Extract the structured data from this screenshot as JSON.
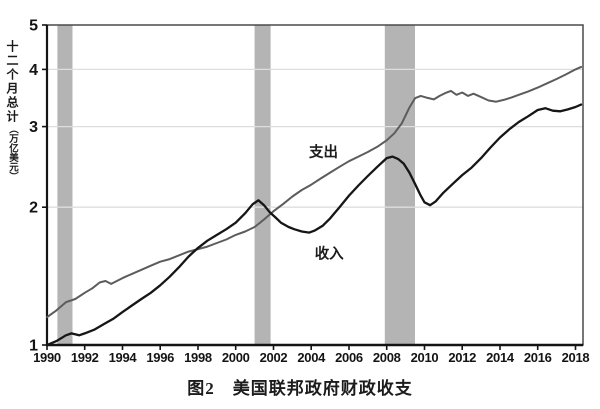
{
  "figure": {
    "caption": "图2　美国联邦政府财政收支"
  },
  "colors": {
    "background": "#ffffff",
    "band": "#b4b4b4",
    "grid": "#dedede",
    "border": "#4a4a4a",
    "axis": "#141414",
    "text": "#141414",
    "series_label": "#1c1c1c"
  },
  "chart_data": {
    "type": "line",
    "title": "图2　美国联邦政府财政收支",
    "xlabel": "",
    "ylabel": "十二个月总计（万亿美元）",
    "ylabel_main": "十二个月总计",
    "ylabel_unit": "（万亿美元）",
    "y_scale": "log",
    "grid": true,
    "legend_position": "inline-labels",
    "xlim": [
      1990,
      2018.4
    ],
    "ylim": [
      1,
      5
    ],
    "x_ticks": [
      1990,
      1992,
      1994,
      1996,
      1998,
      2000,
      2002,
      2004,
      2006,
      2008,
      2010,
      2012,
      2014,
      2016,
      2018
    ],
    "y_ticks": [
      1,
      2,
      3,
      4,
      5
    ],
    "y_gridlines": [
      2,
      3,
      4
    ],
    "recession_bands": [
      [
        1990.55,
        1991.35
      ],
      [
        2001.0,
        2001.85
      ],
      [
        2007.9,
        2009.5
      ]
    ],
    "series": [
      {
        "id": "expenditure",
        "name": "支出",
        "color": "#5c5c5c",
        "width": 2.0,
        "label_x": 2004.65,
        "label_y": 2.64,
        "x": [
          1990.0,
          1990.5,
          1991.0,
          1991.5,
          1992.0,
          1992.4,
          1992.8,
          1993.1,
          1993.4,
          1994.0,
          1994.5,
          1995.0,
          1995.5,
          1996.0,
          1996.5,
          1997.0,
          1997.5,
          1998.0,
          1998.5,
          1999.0,
          1999.5,
          2000.0,
          2000.5,
          2001.0,
          2001.5,
          2002.0,
          2002.5,
          2003.0,
          2003.5,
          2004.0,
          2004.5,
          2005.0,
          2005.5,
          2006.0,
          2006.5,
          2007.0,
          2007.5,
          2008.0,
          2008.4,
          2008.8,
          2009.2,
          2009.5,
          2009.8,
          2010.1,
          2010.5,
          2010.8,
          2011.1,
          2011.4,
          2011.7,
          2012.0,
          2012.3,
          2012.6,
          2013.0,
          2013.4,
          2013.8,
          2014.2,
          2014.6,
          2015.0,
          2015.5,
          2016.0,
          2016.5,
          2017.0,
          2017.5,
          2018.0,
          2018.3
        ],
        "values": [
          1.15,
          1.19,
          1.24,
          1.26,
          1.3,
          1.33,
          1.37,
          1.38,
          1.36,
          1.4,
          1.43,
          1.46,
          1.49,
          1.52,
          1.54,
          1.57,
          1.6,
          1.62,
          1.64,
          1.67,
          1.7,
          1.74,
          1.77,
          1.81,
          1.88,
          1.96,
          2.03,
          2.11,
          2.18,
          2.24,
          2.31,
          2.38,
          2.45,
          2.52,
          2.58,
          2.64,
          2.71,
          2.8,
          2.9,
          3.05,
          3.3,
          3.46,
          3.5,
          3.47,
          3.44,
          3.5,
          3.55,
          3.59,
          3.52,
          3.56,
          3.5,
          3.54,
          3.48,
          3.42,
          3.4,
          3.43,
          3.47,
          3.52,
          3.58,
          3.65,
          3.73,
          3.81,
          3.9,
          4.0,
          4.05
        ]
      },
      {
        "id": "revenue",
        "name": "收入",
        "color": "#161616",
        "width": 2.3,
        "label_x": 2004.95,
        "label_y": 1.585,
        "x": [
          1990.0,
          1990.5,
          1991.0,
          1991.3,
          1991.7,
          1992.0,
          1992.5,
          1993.0,
          1993.5,
          1994.0,
          1994.5,
          1995.0,
          1995.5,
          1996.0,
          1996.5,
          1997.0,
          1997.5,
          1998.0,
          1998.5,
          1999.0,
          1999.5,
          2000.0,
          2000.5,
          2000.9,
          2001.2,
          2001.5,
          2001.8,
          2002.1,
          2002.4,
          2002.8,
          2003.1,
          2003.5,
          2003.9,
          2004.2,
          2004.6,
          2005.0,
          2005.5,
          2006.0,
          2006.5,
          2007.0,
          2007.5,
          2008.0,
          2008.3,
          2008.6,
          2008.9,
          2009.2,
          2009.5,
          2009.8,
          2010.0,
          2010.3,
          2010.6,
          2011.0,
          2011.5,
          2012.0,
          2012.5,
          2013.0,
          2013.5,
          2014.0,
          2014.5,
          2015.0,
          2015.5,
          2016.0,
          2016.4,
          2016.8,
          2017.2,
          2017.6,
          2018.0,
          2018.3
        ],
        "values": [
          1.0,
          1.02,
          1.05,
          1.06,
          1.05,
          1.06,
          1.08,
          1.11,
          1.14,
          1.18,
          1.22,
          1.26,
          1.3,
          1.35,
          1.41,
          1.48,
          1.56,
          1.63,
          1.69,
          1.74,
          1.79,
          1.85,
          1.94,
          2.03,
          2.07,
          2.02,
          1.95,
          1.9,
          1.85,
          1.81,
          1.79,
          1.77,
          1.76,
          1.78,
          1.82,
          1.89,
          2.0,
          2.12,
          2.23,
          2.34,
          2.45,
          2.56,
          2.58,
          2.55,
          2.49,
          2.38,
          2.25,
          2.12,
          2.05,
          2.02,
          2.06,
          2.15,
          2.25,
          2.35,
          2.44,
          2.56,
          2.7,
          2.84,
          2.96,
          3.07,
          3.16,
          3.26,
          3.29,
          3.25,
          3.24,
          3.27,
          3.31,
          3.35
        ]
      }
    ]
  }
}
